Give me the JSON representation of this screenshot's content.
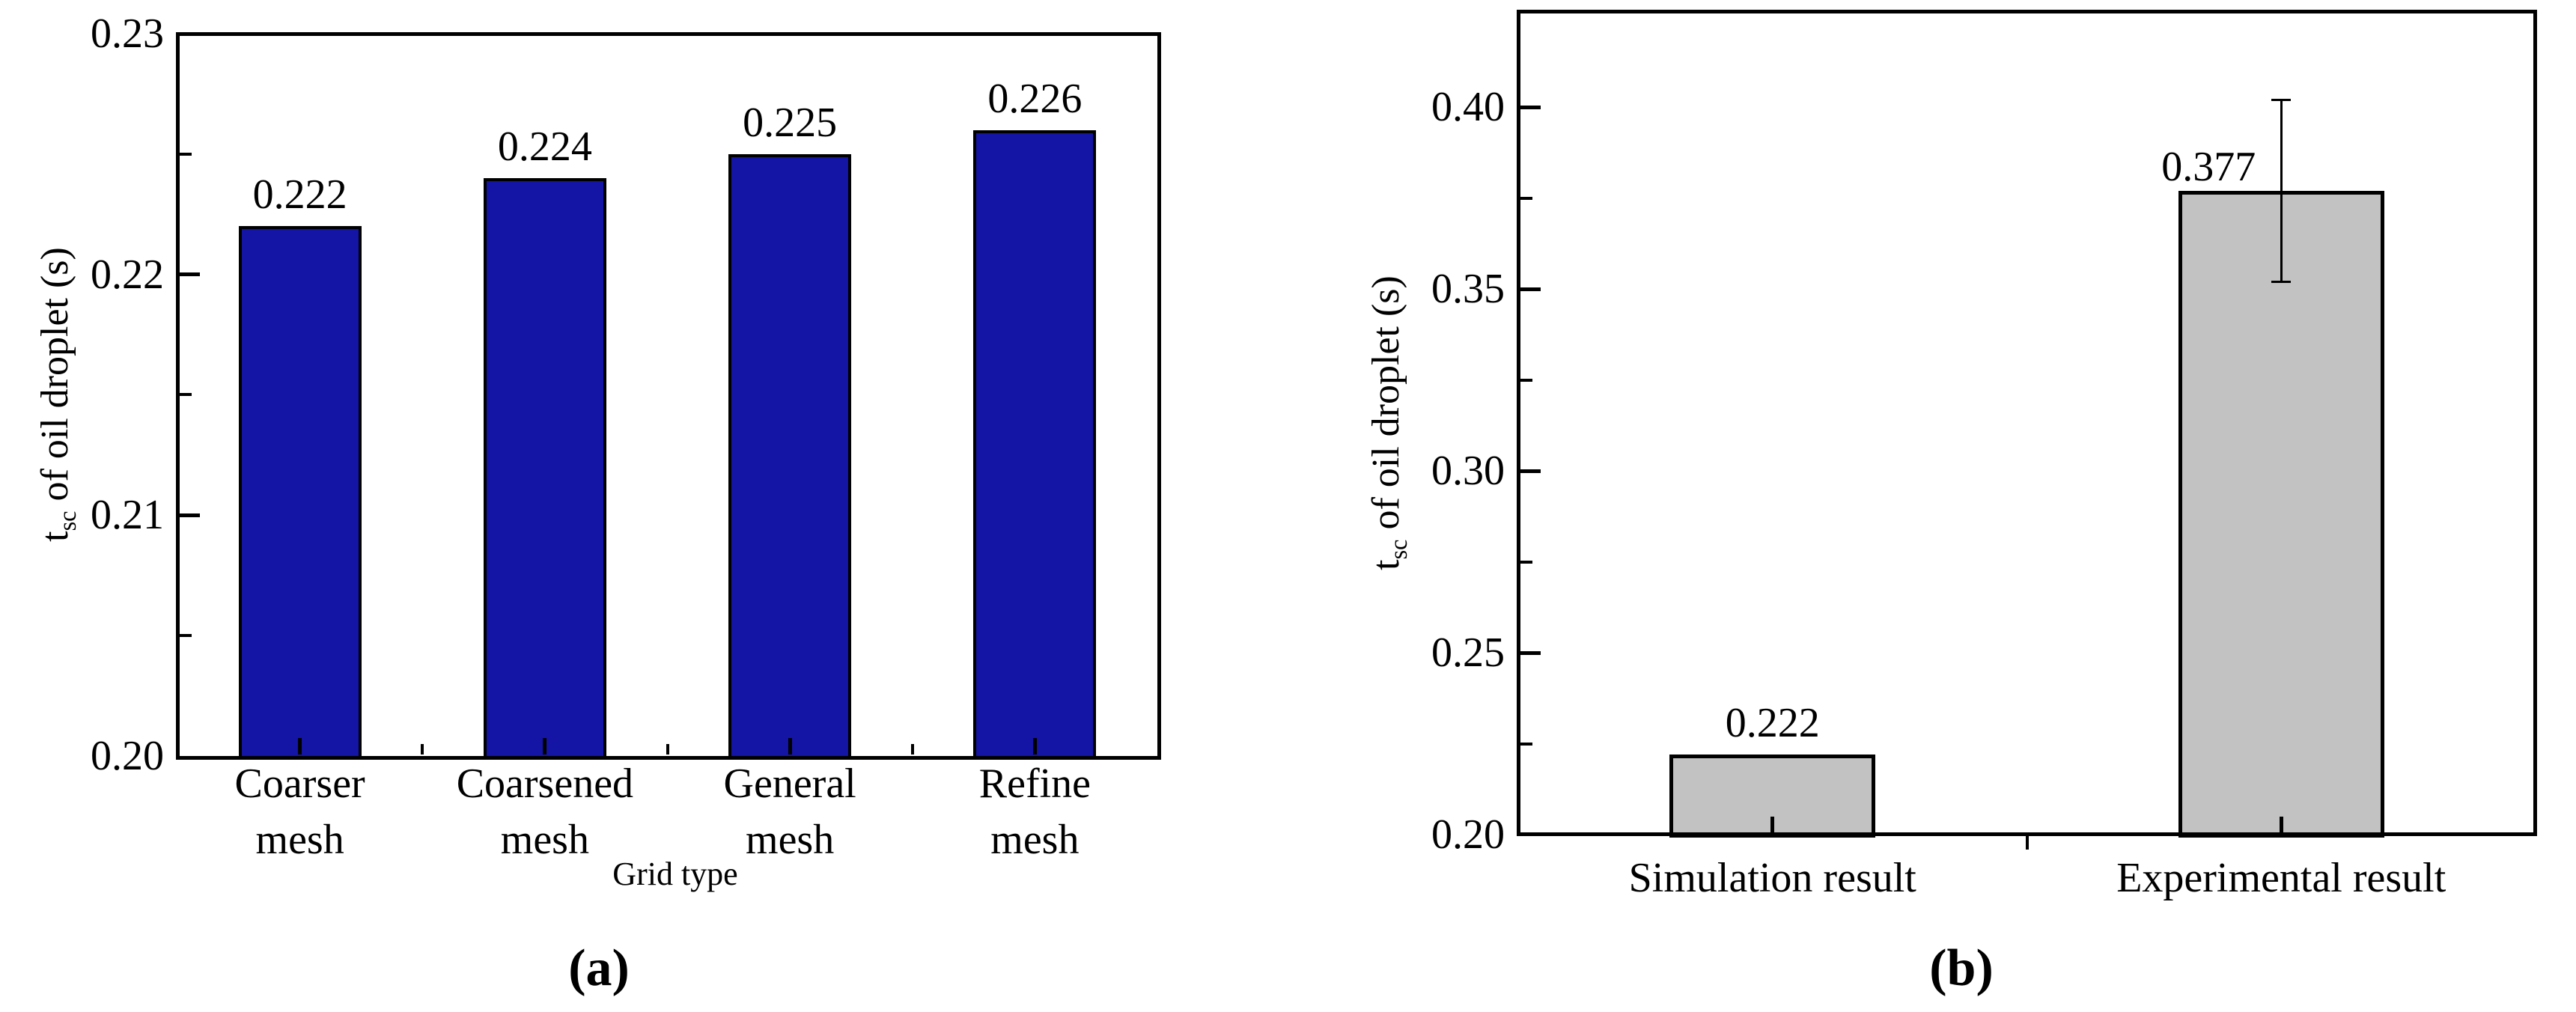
{
  "page": {
    "background": "#ffffff"
  },
  "chart_data": [
    {
      "id": "a",
      "type": "bar",
      "panel_caption": "(a)",
      "xlabel": "Grid type",
      "ylabel": {
        "pre": "t",
        "sub": "sc",
        "post": " of oil droplet (s)"
      },
      "categories": [
        "Coarser mesh",
        "Coarsened mesh",
        "General mesh",
        "Refine mesh"
      ],
      "category_lines": [
        [
          "Coarser",
          "mesh"
        ],
        [
          "Coarsened",
          "mesh"
        ],
        [
          "General",
          "mesh"
        ],
        [
          "Refine",
          "mesh"
        ]
      ],
      "values": [
        0.222,
        0.224,
        0.225,
        0.226
      ],
      "bar_labels": [
        "0.222",
        "0.224",
        "0.225",
        "0.226"
      ],
      "errors": [
        null,
        null,
        null,
        null
      ],
      "ylim": [
        0.2,
        0.23
      ],
      "yticks": [
        {
          "value": 0.2,
          "label": "0.20"
        },
        {
          "value": 0.21,
          "label": "0.21"
        },
        {
          "value": 0.22,
          "label": "0.22"
        },
        {
          "value": 0.23,
          "label": "0.23"
        }
      ],
      "yminor": [
        0.205,
        0.215,
        0.225
      ],
      "bar_color": "#1414a5",
      "bar_border_color": "#000000",
      "grid": false,
      "legend": null
    },
    {
      "id": "b",
      "type": "bar",
      "panel_caption": "(b)",
      "xlabel": "",
      "ylabel": {
        "pre": "t",
        "sub": "sc",
        "post": " of oil droplet (s)"
      },
      "categories": [
        "Simulation result",
        "Experimental result"
      ],
      "category_lines": [
        [
          "Simulation result"
        ],
        [
          "Experimental result"
        ]
      ],
      "values": [
        0.222,
        0.377
      ],
      "bar_labels": [
        "0.222",
        "0.377"
      ],
      "errors": [
        null,
        0.025
      ],
      "ylim": [
        0.2,
        0.4
      ],
      "yticks": [
        {
          "value": 0.2,
          "label": "0.20"
        },
        {
          "value": 0.25,
          "label": "0.25"
        },
        {
          "value": 0.3,
          "label": "0.30"
        },
        {
          "value": 0.35,
          "label": "0.35"
        },
        {
          "value": 0.4,
          "label": "0.40"
        }
      ],
      "yminor": [
        0.225,
        0.275,
        0.325,
        0.375
      ],
      "bar_color": "#c2c2c2",
      "bar_border_color": "#000000",
      "grid": false,
      "legend": null
    }
  ]
}
